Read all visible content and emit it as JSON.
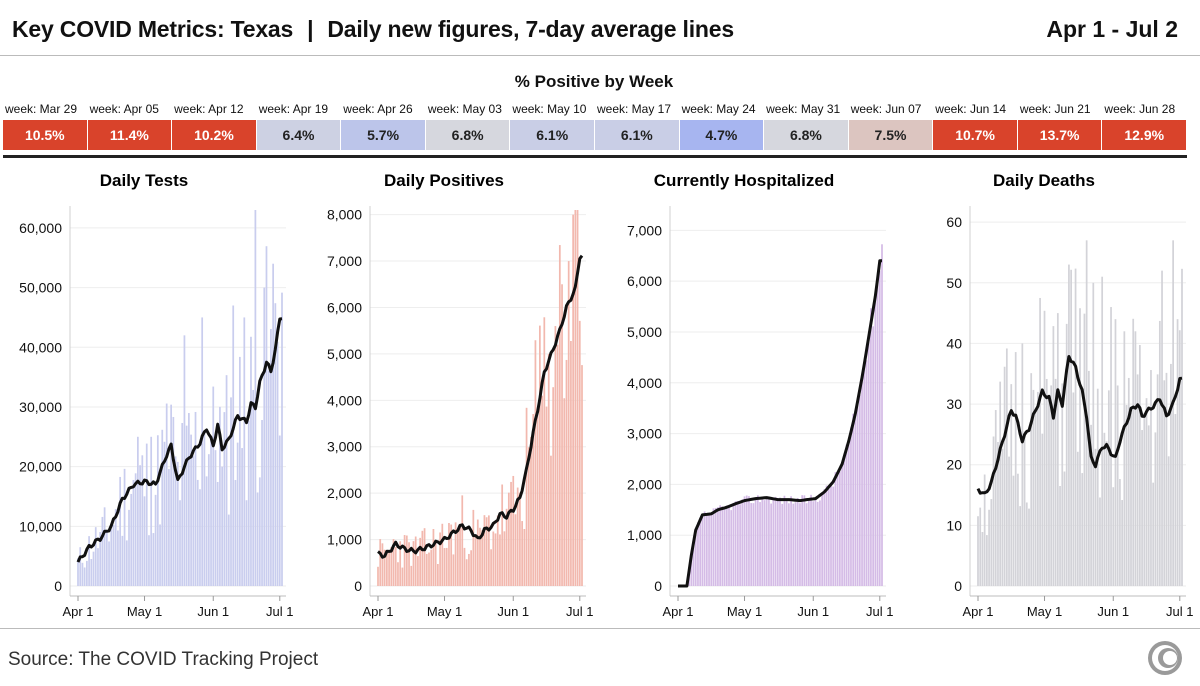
{
  "header": {
    "title": "Key COVID Metrics: Texas",
    "separator": "|",
    "subtitle": "Daily new figures, 7-day average lines",
    "date_range": "Apr 1 - Jul 2"
  },
  "positivity": {
    "title": "% Positive by Week",
    "weeks": [
      {
        "label": "week: Mar 29",
        "value": "10.5%",
        "color": "#d9432b",
        "hot": true
      },
      {
        "label": "week: Apr 05",
        "value": "11.4%",
        "color": "#d9432b",
        "hot": true
      },
      {
        "label": "week: Apr 12",
        "value": "10.2%",
        "color": "#d9432b",
        "hot": true
      },
      {
        "label": "week: Apr 19",
        "value": "6.4%",
        "color": "#cdd1e3",
        "hot": false
      },
      {
        "label": "week: Apr 26",
        "value": "5.7%",
        "color": "#bcc5ea",
        "hot": false
      },
      {
        "label": "week: May 03",
        "value": "6.8%",
        "color": "#d6d7de",
        "hot": false
      },
      {
        "label": "week: May 10",
        "value": "6.1%",
        "color": "#c9cee6",
        "hot": false
      },
      {
        "label": "week: May 17",
        "value": "6.1%",
        "color": "#c9cee6",
        "hot": false
      },
      {
        "label": "week: May 24",
        "value": "4.7%",
        "color": "#a7b5f0",
        "hot": false
      },
      {
        "label": "week: May 31",
        "value": "6.8%",
        "color": "#d6d7de",
        "hot": false
      },
      {
        "label": "week: Jun 07",
        "value": "7.5%",
        "color": "#dcc5c0",
        "hot": false
      },
      {
        "label": "week: Jun 14",
        "value": "10.7%",
        "color": "#d9432b",
        "hot": true
      },
      {
        "label": "week: Jun 21",
        "value": "13.7%",
        "color": "#d9432b",
        "hot": true
      },
      {
        "label": "week: Jun 28",
        "value": "12.9%",
        "color": "#d9432b",
        "hot": true
      }
    ]
  },
  "chart_data": [
    {
      "type": "bar",
      "title": "Daily Tests",
      "bar_color": "#c9cdee",
      "line_color": "#111111",
      "yticks": [
        0,
        10000,
        20000,
        30000,
        40000,
        50000,
        60000
      ],
      "ytick_labels": [
        "0",
        "10,000",
        "20,000",
        "30,000",
        "40,000",
        "50,000",
        "60,000"
      ],
      "xtick_labels": [
        "Apr 1",
        "May 1",
        "Jun 1",
        "Jul 1"
      ],
      "xtick_days": [
        0,
        30,
        61,
        91
      ],
      "ylim": [
        0,
        63000
      ],
      "anchors": [
        [
          0,
          4000
        ],
        [
          5,
          6500
        ],
        [
          10,
          8000
        ],
        [
          15,
          10000
        ],
        [
          20,
          14500
        ],
        [
          25,
          17000
        ],
        [
          30,
          17500
        ],
        [
          35,
          17000
        ],
        [
          40,
          22000
        ],
        [
          42,
          23500
        ],
        [
          45,
          17500
        ],
        [
          48,
          20000
        ],
        [
          50,
          21500
        ],
        [
          55,
          24000
        ],
        [
          58,
          26500
        ],
        [
          61,
          23500
        ],
        [
          63,
          27000
        ],
        [
          65,
          23000
        ],
        [
          68,
          24500
        ],
        [
          72,
          28500
        ],
        [
          76,
          27500
        ],
        [
          78,
          30500
        ],
        [
          80,
          30000
        ],
        [
          82,
          34000
        ],
        [
          85,
          37500
        ],
        [
          87,
          36000
        ],
        [
          89,
          39500
        ],
        [
          91,
          45000
        ]
      ],
      "spike_days": [
        [
          65,
          20000
        ],
        [
          70,
          47000
        ],
        [
          75,
          45000
        ],
        [
          80,
          63000
        ],
        [
          84,
          50000
        ],
        [
          88,
          54000
        ],
        [
          33,
          25000
        ],
        [
          48,
          42000
        ],
        [
          56,
          45000
        ],
        [
          27,
          25000
        ]
      ],
      "seed": 11
    },
    {
      "type": "bar",
      "title": "Daily Positives",
      "bar_color": "#f2b8ae",
      "line_color": "#111111",
      "yticks": [
        0,
        1000,
        2000,
        3000,
        4000,
        5000,
        6000,
        7000,
        8000
      ],
      "ytick_labels": [
        "0",
        "1,000",
        "2,000",
        "3,000",
        "4,000",
        "5,000",
        "6,000",
        "7,000",
        "8,000"
      ],
      "xtick_labels": [
        "Apr 1",
        "May 1",
        "Jun 1",
        "Jul 1"
      ],
      "xtick_days": [
        0,
        30,
        61,
        91
      ],
      "ylim": [
        0,
        8100
      ],
      "anchors": [
        [
          0,
          700
        ],
        [
          3,
          650
        ],
        [
          6,
          800
        ],
        [
          8,
          900
        ],
        [
          12,
          800
        ],
        [
          16,
          750
        ],
        [
          20,
          800
        ],
        [
          25,
          900
        ],
        [
          30,
          1000
        ],
        [
          34,
          1150
        ],
        [
          38,
          1300
        ],
        [
          42,
          1200
        ],
        [
          45,
          1000
        ],
        [
          48,
          1200
        ],
        [
          52,
          1300
        ],
        [
          55,
          1550
        ],
        [
          58,
          1500
        ],
        [
          61,
          1650
        ],
        [
          64,
          1900
        ],
        [
          67,
          2500
        ],
        [
          70,
          3300
        ],
        [
          72,
          3800
        ],
        [
          75,
          4600
        ],
        [
          79,
          5100
        ],
        [
          82,
          5500
        ],
        [
          85,
          6000
        ],
        [
          89,
          6400
        ],
        [
          91,
          7100
        ]
      ],
      "spike_days": [
        [
          88,
          8000
        ],
        [
          90,
          8100
        ],
        [
          86,
          7000
        ],
        [
          83,
          6500
        ],
        [
          80,
          5600
        ],
        [
          77,
          5000
        ],
        [
          74,
          4100
        ]
      ],
      "seed": 23
    },
    {
      "type": "bar",
      "title": "Currently Hospitalized",
      "bar_color": "#d4bbe6",
      "line_color": "#111111",
      "yticks": [
        0,
        1000,
        2000,
        3000,
        4000,
        5000,
        6000,
        7000
      ],
      "ytick_labels": [
        "0",
        "1,000",
        "2,000",
        "3,000",
        "4,000",
        "5,000",
        "6,000",
        "7,000"
      ],
      "xtick_labels": [
        "Apr 1",
        "May 1",
        "Jun 1",
        "Jul 1"
      ],
      "xtick_days": [
        0,
        30,
        61,
        91
      ],
      "ylim": [
        0,
        7400
      ],
      "anchors": [
        [
          0,
          0
        ],
        [
          4,
          0
        ],
        [
          6,
          600
        ],
        [
          8,
          1100
        ],
        [
          11,
          1400
        ],
        [
          15,
          1420
        ],
        [
          18,
          1500
        ],
        [
          22,
          1550
        ],
        [
          26,
          1620
        ],
        [
          30,
          1680
        ],
        [
          35,
          1720
        ],
        [
          40,
          1740
        ],
        [
          45,
          1700
        ],
        [
          50,
          1700
        ],
        [
          55,
          1680
        ],
        [
          58,
          1700
        ],
        [
          62,
          1720
        ],
        [
          66,
          1850
        ],
        [
          70,
          2050
        ],
        [
          74,
          2400
        ],
        [
          77,
          2850
        ],
        [
          80,
          3400
        ],
        [
          83,
          4100
        ],
        [
          86,
          4900
        ],
        [
          89,
          5700
        ],
        [
          91,
          6400
        ]
      ],
      "spike_days": [],
      "seed": 37
    },
    {
      "type": "bar",
      "title": "Daily Deaths",
      "bar_color": "#d3d3d8",
      "line_color": "#111111",
      "yticks": [
        0,
        10,
        20,
        30,
        40,
        50,
        60
      ],
      "ytick_labels": [
        "0",
        "10",
        "20",
        "30",
        "40",
        "50",
        "60"
      ],
      "xtick_labels": [
        "Apr 1",
        "May 1",
        "Jun 1",
        "Jul 1"
      ],
      "xtick_days": [
        0,
        30,
        61,
        91
      ],
      "ylim": [
        0,
        62
      ],
      "anchors": [
        [
          0,
          16
        ],
        [
          3,
          15
        ],
        [
          6,
          17
        ],
        [
          9,
          21
        ],
        [
          12,
          25
        ],
        [
          15,
          29
        ],
        [
          17,
          28
        ],
        [
          20,
          24
        ],
        [
          23,
          26
        ],
        [
          26,
          29
        ],
        [
          29,
          32
        ],
        [
          32,
          31
        ],
        [
          34,
          28
        ],
        [
          36,
          32
        ],
        [
          38,
          30
        ],
        [
          41,
          38
        ],
        [
          44,
          36
        ],
        [
          47,
          32
        ],
        [
          49,
          28
        ],
        [
          51,
          21
        ],
        [
          53,
          20
        ],
        [
          56,
          23
        ],
        [
          58,
          23
        ],
        [
          60,
          22
        ],
        [
          62,
          21
        ],
        [
          64,
          24
        ],
        [
          66,
          26
        ],
        [
          69,
          29
        ],
        [
          72,
          30
        ],
        [
          74,
          28
        ],
        [
          77,
          29
        ],
        [
          80,
          30
        ],
        [
          82,
          31
        ],
        [
          85,
          28
        ],
        [
          88,
          30
        ],
        [
          91,
          34
        ]
      ],
      "spike_days": [
        [
          49,
          57
        ],
        [
          52,
          50
        ],
        [
          56,
          51
        ],
        [
          41,
          53
        ],
        [
          36,
          45
        ],
        [
          60,
          46
        ],
        [
          62,
          44
        ],
        [
          66,
          42
        ],
        [
          71,
          42
        ],
        [
          83,
          52
        ],
        [
          88,
          57
        ],
        [
          90,
          44
        ],
        [
          27,
          32
        ],
        [
          20,
          40
        ]
      ],
      "seed": 51
    }
  ],
  "footer": {
    "source": "Source: The COVID Tracking Project"
  }
}
